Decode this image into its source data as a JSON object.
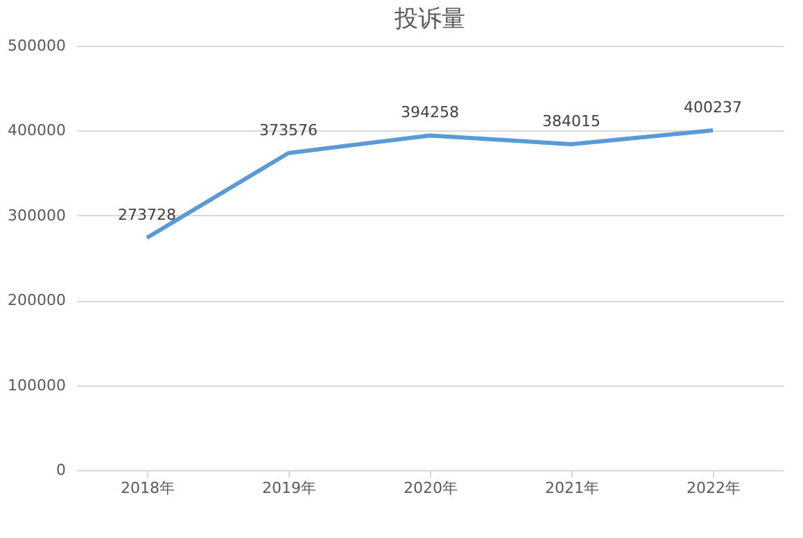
{
  "chart_data": {
    "type": "line",
    "title": "投诉量",
    "categories": [
      "2018年",
      "2019年",
      "2020年",
      "2021年",
      "2022年"
    ],
    "series": [
      {
        "color": "#5b9bd5",
        "values": [
          273728,
          373576,
          394258,
          384015,
          400237
        ]
      }
    ],
    "ylim": [
      0,
      500000
    ],
    "yticks": [
      0,
      100000,
      200000,
      300000,
      400000,
      500000
    ],
    "grid": "y",
    "data_labels": true,
    "marker": "none",
    "line_style": "solid",
    "legend": false
  }
}
